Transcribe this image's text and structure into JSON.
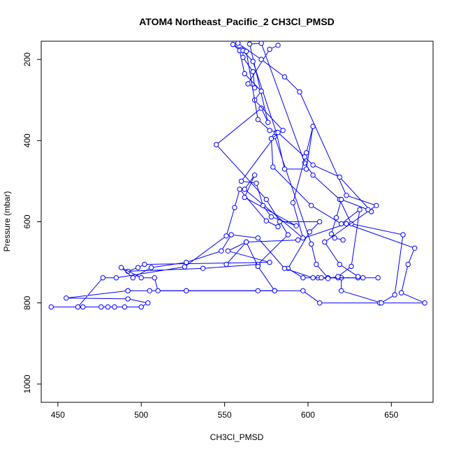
{
  "chart_data": {
    "type": "line",
    "title": "ATOM4 Northeast_Pacific_2 CH3Cl_PMSD",
    "xlabel": "CH3Cl_PMSD",
    "ylabel": "Pressure (mbar)",
    "xlim": [
      440,
      675
    ],
    "ylim": [
      1045,
      155
    ],
    "y_reversed": true,
    "x_ticks": [
      "450",
      "500",
      "550",
      "600",
      "650"
    ],
    "y_ticks": [
      "200",
      "400",
      "600",
      "800",
      "1000"
    ],
    "grid": false,
    "marker": "open-circle",
    "color": "#0000ff",
    "series": [
      {
        "points": [
          [
            446,
            810
          ],
          [
            465,
            810
          ],
          [
            480,
            810
          ],
          [
            490,
            810
          ],
          [
            500,
            810
          ],
          [
            504,
            800
          ],
          [
            492,
            790
          ],
          [
            455,
            788
          ],
          [
            492,
            770
          ],
          [
            527,
            770
          ],
          [
            505,
            770
          ],
          [
            492,
            770
          ],
          [
            580,
            770
          ],
          [
            597,
            770
          ],
          [
            607,
            800
          ],
          [
            643,
            800
          ],
          [
            670,
            800
          ],
          [
            656,
            775
          ],
          [
            660,
            705
          ],
          [
            664,
            665
          ],
          [
            623,
            605
          ],
          [
            594,
            645
          ],
          [
            563,
            650
          ],
          [
            552,
            672
          ],
          [
            577,
            700
          ],
          [
            502,
            705
          ],
          [
            498,
            713
          ],
          [
            492,
            722
          ],
          [
            537,
            715
          ],
          [
            570,
            705
          ],
          [
            588,
            632
          ],
          [
            575,
            545
          ],
          [
            545,
            410
          ],
          [
            572,
            320
          ],
          [
            576,
            355
          ],
          [
            565,
            162
          ],
          [
            572,
            160
          ],
          [
            598,
            455
          ],
          [
            603,
            485
          ],
          [
            619,
            545
          ],
          [
            626,
            605
          ],
          [
            657,
            632
          ],
          [
            652,
            780
          ],
          [
            644,
            800
          ],
          [
            620,
            770
          ],
          [
            620,
            738
          ],
          [
            606,
            738
          ],
          [
            597,
            738
          ],
          [
            588,
            715
          ],
          [
            601,
            625
          ],
          [
            607,
            600
          ],
          [
            583,
            600
          ],
          [
            582,
            612
          ],
          [
            575,
            598
          ],
          [
            559,
            520
          ],
          [
            556,
            565
          ],
          [
            551,
            635
          ],
          [
            526,
            711
          ],
          [
            485,
            738
          ],
          [
            477,
            738
          ],
          [
            462,
            810
          ],
          [
            476,
            810
          ],
          [
            484,
            810
          ]
        ]
      },
      {
        "points": [
          [
            560,
            175
          ],
          [
            567,
            205
          ],
          [
            581,
            380
          ],
          [
            586,
            470
          ],
          [
            599,
            470
          ],
          [
            603,
            365
          ],
          [
            599,
            430
          ],
          [
            591,
            553
          ],
          [
            597,
            640
          ],
          [
            562,
            520
          ],
          [
            568,
            485
          ],
          [
            562,
            540
          ],
          [
            593,
            610
          ],
          [
            578,
            588
          ],
          [
            573,
            560
          ],
          [
            569,
            505
          ],
          [
            560,
            500
          ],
          [
            580,
            390
          ],
          [
            602,
            655
          ],
          [
            605,
            705
          ],
          [
            612,
            738
          ],
          [
            642,
            738
          ],
          [
            630,
            738
          ],
          [
            618,
            738
          ],
          [
            603,
            738
          ],
          [
            586,
            715
          ],
          [
            570,
            640
          ],
          [
            554,
            632
          ],
          [
            548,
            672
          ],
          [
            527,
            700
          ],
          [
            506,
            713
          ],
          [
            495,
            738
          ],
          [
            488,
            713
          ],
          [
            500,
            738
          ],
          [
            508,
            738
          ],
          [
            510,
            770
          ],
          [
            527,
            770
          ],
          [
            570,
            770
          ],
          [
            580,
            770
          ],
          [
            570,
            710
          ],
          [
            563,
            650
          ],
          [
            551,
            705
          ]
        ]
      },
      {
        "points": [
          [
            558,
            160
          ],
          [
            572,
            200
          ],
          [
            586,
            243
          ],
          [
            595,
            280
          ],
          [
            623,
            535
          ],
          [
            641,
            560
          ],
          [
            610,
            650
          ],
          [
            619,
            705
          ],
          [
            630,
            735
          ],
          [
            633,
            738
          ],
          [
            608,
            738
          ],
          [
            612,
            740
          ],
          [
            618,
            735
          ],
          [
            626,
            710
          ],
          [
            631,
            570
          ],
          [
            620,
            605
          ],
          [
            602,
            560
          ],
          [
            579,
            465
          ],
          [
            578,
            395
          ],
          [
            585,
            375
          ],
          [
            568,
            300
          ],
          [
            572,
            278
          ],
          [
            562,
            235
          ],
          [
            559,
            178
          ],
          [
            555,
            163
          ],
          [
            561,
            178
          ],
          [
            561,
            195
          ],
          [
            567,
            230
          ],
          [
            568,
            270
          ],
          [
            564,
            260
          ],
          [
            577,
            175
          ],
          [
            582,
            165
          ]
        ]
      },
      {
        "points": [
          [
            563,
            180
          ],
          [
            570,
            348
          ],
          [
            577,
            375
          ],
          [
            582,
            380
          ],
          [
            598,
            440
          ],
          [
            603,
            460
          ],
          [
            619,
            490
          ],
          [
            638,
            575
          ],
          [
            636,
            570
          ],
          [
            620,
            545
          ],
          [
            617,
            590
          ],
          [
            614,
            630
          ],
          [
            616,
            640
          ],
          [
            621,
            645
          ]
        ]
      }
    ]
  }
}
